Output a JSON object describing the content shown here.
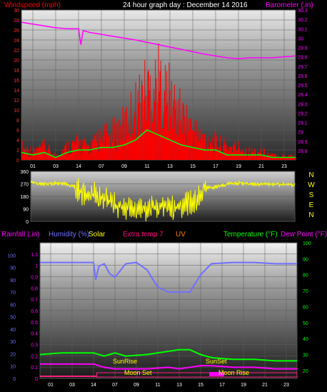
{
  "header": {
    "left": "Windspeed (mph)",
    "center": "24 hour graph day : December 14 2016",
    "right": "Barometer (.in)"
  },
  "colors": {
    "wind": "#ff0000",
    "gust": "#ff0000",
    "avg": "#00ff00",
    "baro": "#ff00ff",
    "direction": "#ffff00",
    "humidity": "#7070ff",
    "rain": "#ff00ff",
    "temp": "#00ff00",
    "dew": "#ff00ff",
    "sun": "#ffff00",
    "moon": "#ff2080",
    "axis_text": "#ffffff",
    "compass": "#ffff00"
  },
  "chart_data": [
    {
      "type": "line",
      "title": "24 hour graph day : December 14 2016",
      "ylabel": "Windspeed (mph)",
      "y2label": "Barometer (.in)",
      "x_ticks": [
        "01",
        "03",
        "14",
        "07",
        "09",
        "11",
        "13",
        "15",
        "17",
        "19",
        "21",
        "23"
      ],
      "ylim": [
        0,
        30
      ],
      "y_ticks": [
        0,
        2,
        4,
        6,
        8,
        10,
        12,
        14,
        16,
        18,
        20,
        22,
        24,
        26,
        28,
        30
      ],
      "y2lim": [
        28.7,
        30.3
      ],
      "y2_ticks": [
        "28.8",
        "28.9",
        "29",
        "29.1",
        "29.2",
        "29.3",
        "29.4",
        "29.5",
        "29.6",
        "29.7",
        "29.8",
        "29.9",
        "30",
        "30.1",
        "30.2",
        "30.3"
      ],
      "series": [
        {
          "key": "gust",
          "x": [
            0,
            1,
            2,
            3,
            4,
            5,
            6,
            7,
            8,
            9,
            10,
            11,
            12,
            13,
            14,
            15,
            16,
            17,
            18,
            19,
            20,
            21,
            22,
            23,
            24
          ],
          "values": [
            3,
            2,
            3,
            1,
            3,
            4,
            3,
            5,
            6,
            8,
            12,
            16,
            17,
            14,
            10,
            7,
            5,
            4,
            3,
            3,
            2,
            2,
            1,
            1,
            1
          ]
        },
        {
          "key": "avg",
          "x": [
            0,
            1,
            2,
            3,
            4,
            5,
            6,
            7,
            8,
            9,
            10,
            11,
            12,
            13,
            14,
            15,
            16,
            17,
            18,
            19,
            20,
            21,
            22,
            23,
            24
          ],
          "values": [
            1.5,
            1,
            1.5,
            0.5,
            1.5,
            2,
            2,
            2.5,
            2.5,
            3,
            4,
            6,
            5,
            4,
            3,
            2.5,
            2,
            2,
            1,
            1,
            1,
            1,
            0.5,
            0.5,
            0.5
          ]
        },
        {
          "key": "baro",
          "axis": "y2",
          "x": [
            0,
            1,
            2,
            3,
            4,
            5,
            5.2,
            5.4,
            6,
            8,
            10,
            12,
            14,
            16,
            18,
            19,
            20,
            22,
            24
          ],
          "values": [
            30.17,
            30.15,
            30.13,
            30.11,
            30.1,
            30.1,
            29.93,
            30.08,
            30.06,
            30.02,
            29.98,
            29.93,
            29.88,
            29.83,
            29.79,
            29.78,
            29.79,
            29.79,
            29.81
          ]
        }
      ]
    },
    {
      "type": "line",
      "ylabel": "Wind direction",
      "ylim": [
        0,
        360
      ],
      "y_ticks": [
        0,
        90,
        180,
        270,
        360
      ],
      "compass_labels": [
        "N",
        "W",
        "S",
        "E",
        "N"
      ],
      "series": [
        {
          "key": "direction",
          "x": [
            0,
            1,
            2,
            3,
            4,
            5,
            6,
            7,
            8,
            9,
            10,
            11,
            12,
            13,
            14,
            15,
            16,
            17,
            18,
            19,
            20,
            21,
            22,
            23,
            24
          ],
          "values": [
            280,
            270,
            275,
            270,
            250,
            180,
            200,
            150,
            110,
            90,
            80,
            95,
            110,
            100,
            120,
            150,
            240,
            250,
            270,
            275,
            270,
            265,
            270,
            265,
            265
          ]
        }
      ]
    },
    {
      "type": "line",
      "legend": [
        "Rainfall (.in)",
        "Humidity (%)",
        "Solar",
        "Extra temp 7",
        "UV",
        "Temperature (°F)",
        "Dew Point (°F)"
      ],
      "ylim": [
        0,
        1.2
      ],
      "y_ticks": [
        "0",
        "0.1",
        "0.2",
        "0.3",
        "0.4",
        "0.5",
        "0.6",
        "0.7",
        "0.8",
        "0.9",
        "1",
        "1.1"
      ],
      "left_scale_ticks": [
        "0",
        "10",
        "20",
        "30",
        "40",
        "50",
        "60",
        "70",
        "80",
        "90",
        "100"
      ],
      "y2lim": [
        15,
        100
      ],
      "y2_ticks": [
        "20",
        "30",
        "40",
        "50",
        "60",
        "70",
        "80",
        "90",
        "100"
      ],
      "annotations": [
        "SunRise",
        "SunSet",
        "Moon Set",
        "Moon Rise"
      ],
      "series": [
        {
          "key": "humidity",
          "axis": "left_scale",
          "x": [
            0,
            3,
            5,
            5.2,
            5.5,
            6,
            6.5,
            7,
            8,
            9,
            10,
            11,
            12,
            13,
            14,
            15,
            16,
            18,
            20,
            22,
            24
          ],
          "values": [
            94,
            94,
            94,
            80,
            91,
            93,
            85,
            82,
            93,
            94,
            88,
            74,
            70,
            70,
            70,
            84,
            93,
            94,
            94,
            93,
            93
          ]
        },
        {
          "key": "temp",
          "axis": "y2",
          "x": [
            0,
            2,
            5,
            6,
            7,
            8,
            10,
            12,
            13,
            14,
            15,
            16,
            18,
            20,
            22,
            24
          ],
          "values": [
            30,
            31,
            31,
            29,
            31,
            29,
            30,
            32,
            33,
            33,
            30,
            28,
            27,
            27,
            26,
            26
          ]
        },
        {
          "key": "dew",
          "axis": "y2",
          "x": [
            0,
            2,
            5,
            6,
            7,
            8,
            10,
            12,
            13,
            14,
            15,
            16,
            18,
            20,
            22,
            24
          ],
          "values": [
            24,
            24,
            24,
            22,
            21,
            21,
            21,
            22,
            21,
            22,
            23,
            23,
            22,
            22,
            21,
            21
          ]
        }
      ]
    }
  ]
}
